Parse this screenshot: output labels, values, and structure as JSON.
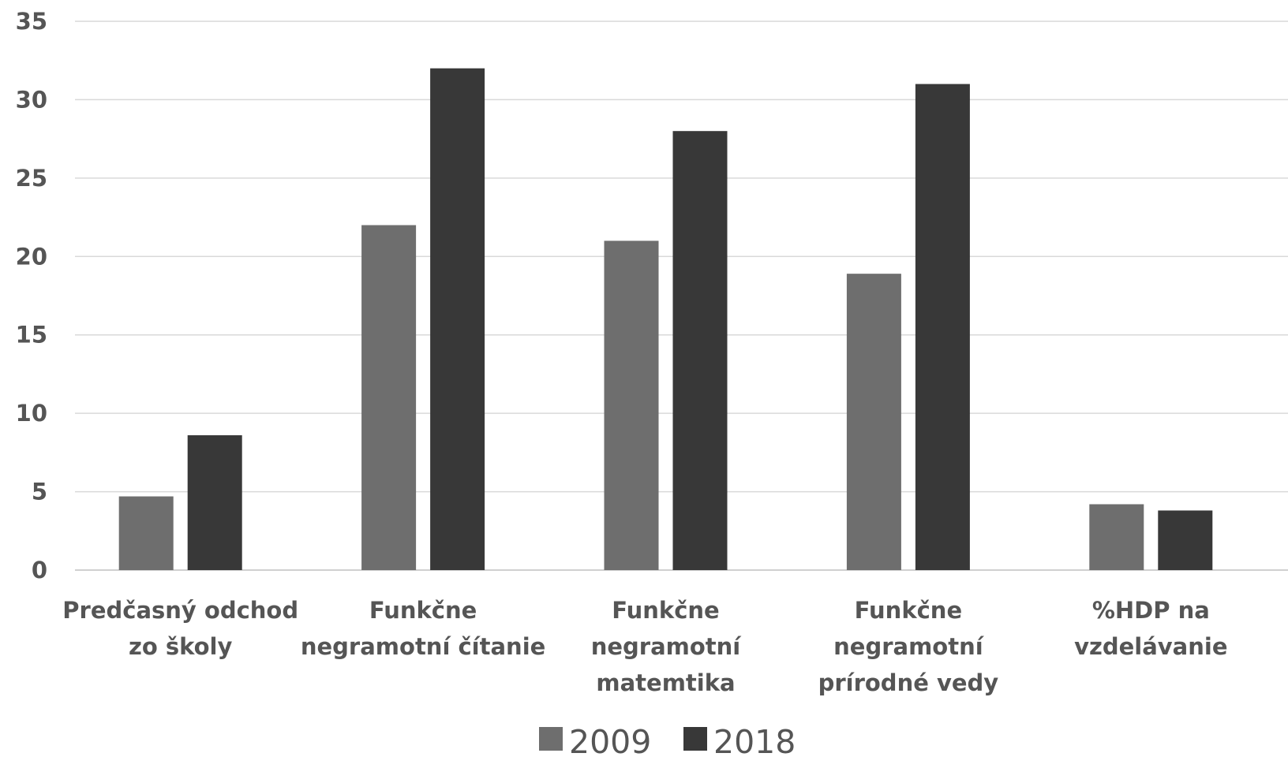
{
  "chart_data": {
    "type": "bar",
    "categories": [
      [
        "Predčasný odchod",
        "zo školy"
      ],
      [
        "Funkčne",
        "negramotní čítanie"
      ],
      [
        "Funkčne",
        "negramotní",
        "matemtika"
      ],
      [
        "Funkčne",
        "negramotní",
        "prírodné vedy"
      ],
      [
        "%HDP na",
        "vzdelávanie"
      ]
    ],
    "series": [
      {
        "name": "2009",
        "values": [
          4.7,
          22,
          21,
          18.9,
          4.2
        ],
        "color": "#6e6e6e"
      },
      {
        "name": "2018",
        "values": [
          8.6,
          32,
          28,
          31,
          3.8
        ],
        "color": "#383838"
      }
    ],
    "y_ticks": [
      "0",
      "5",
      "10",
      "15",
      "20",
      "25",
      "30",
      "35"
    ],
    "ylim": [
      0,
      35
    ],
    "grid": true,
    "legend_position": "bottom"
  }
}
